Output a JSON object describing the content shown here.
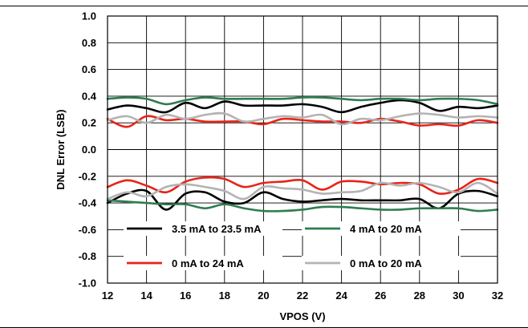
{
  "chart_data": {
    "type": "line",
    "title": "",
    "xlabel": "VPOS (V)",
    "ylabel": "DNL Error (LSB)",
    "xlim": [
      12,
      32
    ],
    "ylim": [
      -1.0,
      1.0
    ],
    "xticks": [
      12,
      14,
      16,
      18,
      20,
      22,
      24,
      26,
      28,
      30,
      32
    ],
    "yticks": [
      "1.0",
      "0.8",
      "0.6",
      "0.4",
      "0.2",
      "0.0",
      "-0.2",
      "-0.4",
      "-0.6",
      "-0.8",
      "-1.0"
    ],
    "grid": true,
    "legend_position": "bottom-inside",
    "series": [
      {
        "name": "3.5 mA to 23.5 mA",
        "color": "#000000",
        "curves": [
          {
            "x": [
              12,
              13,
              14,
              15,
              16,
              17,
              18,
              19,
              20,
              21,
              22,
              23,
              24,
              25,
              26,
              27,
              28,
              29,
              30,
              31,
              32
            ],
            "y": [
              0.3,
              0.33,
              0.31,
              0.28,
              0.35,
              0.31,
              0.36,
              0.33,
              0.33,
              0.33,
              0.34,
              0.32,
              0.28,
              0.32,
              0.35,
              0.37,
              0.35,
              0.29,
              0.32,
              0.31,
              0.33
            ]
          },
          {
            "x": [
              12,
              13,
              14,
              15,
              16,
              17,
              18,
              19,
              20,
              21,
              22,
              23,
              24,
              25,
              26,
              27,
              28,
              29,
              30,
              31,
              32
            ],
            "y": [
              -0.4,
              -0.33,
              -0.31,
              -0.45,
              -0.33,
              -0.32,
              -0.39,
              -0.4,
              -0.32,
              -0.37,
              -0.39,
              -0.38,
              -0.37,
              -0.38,
              -0.38,
              -0.38,
              -0.37,
              -0.44,
              -0.33,
              -0.31,
              -0.35
            ]
          }
        ]
      },
      {
        "name": "4 mA to 20 mA",
        "color": "#2e7d4f",
        "curves": [
          {
            "x": [
              12,
              13,
              14,
              15,
              16,
              17,
              18,
              19,
              20,
              21,
              22,
              23,
              24,
              25,
              26,
              27,
              28,
              29,
              30,
              31,
              32
            ],
            "y": [
              0.38,
              0.39,
              0.38,
              0.34,
              0.37,
              0.39,
              0.38,
              0.38,
              0.38,
              0.38,
              0.39,
              0.39,
              0.38,
              0.37,
              0.38,
              0.38,
              0.37,
              0.38,
              0.38,
              0.37,
              0.34
            ]
          },
          {
            "x": [
              12,
              13,
              14,
              15,
              16,
              17,
              18,
              19,
              20,
              21,
              22,
              23,
              24,
              25,
              26,
              27,
              28,
              29,
              30,
              31,
              32
            ],
            "y": [
              -0.38,
              -0.39,
              -0.4,
              -0.41,
              -0.41,
              -0.44,
              -0.41,
              -0.44,
              -0.46,
              -0.46,
              -0.45,
              -0.43,
              -0.43,
              -0.44,
              -0.45,
              -0.45,
              -0.44,
              -0.44,
              -0.44,
              -0.46,
              -0.45
            ]
          }
        ]
      },
      {
        "name": "0 mA to 24 mA",
        "color": "#e8231a",
        "curves": [
          {
            "x": [
              12,
              13,
              14,
              15,
              16,
              17,
              18,
              19,
              20,
              21,
              22,
              23,
              24,
              25,
              26,
              27,
              28,
              29,
              30,
              31,
              32
            ],
            "y": [
              0.23,
              0.17,
              0.25,
              0.22,
              0.23,
              0.21,
              0.21,
              0.21,
              0.19,
              0.23,
              0.22,
              0.21,
              0.21,
              0.2,
              0.23,
              0.21,
              0.18,
              0.19,
              0.18,
              0.22,
              0.2
            ]
          },
          {
            "x": [
              12,
              13,
              14,
              15,
              16,
              17,
              18,
              19,
              20,
              21,
              22,
              23,
              24,
              25,
              26,
              27,
              28,
              29,
              30,
              31,
              32
            ],
            "y": [
              -0.28,
              -0.23,
              -0.27,
              -0.32,
              -0.24,
              -0.21,
              -0.22,
              -0.28,
              -0.25,
              -0.24,
              -0.23,
              -0.3,
              -0.24,
              -0.24,
              -0.26,
              -0.25,
              -0.26,
              -0.33,
              -0.3,
              -0.22,
              -0.25
            ]
          }
        ]
      },
      {
        "name": "0 mA to 20 mA",
        "color": "#b3b3b3",
        "curves": [
          {
            "x": [
              12,
              13,
              14,
              15,
              16,
              17,
              18,
              19,
              20,
              21,
              22,
              23,
              24,
              25,
              26,
              27,
              28,
              29,
              30,
              31,
              32
            ],
            "y": [
              0.22,
              0.25,
              0.2,
              0.26,
              0.23,
              0.26,
              0.27,
              0.21,
              0.23,
              0.25,
              0.24,
              0.26,
              0.19,
              0.23,
              0.22,
              0.25,
              0.27,
              0.26,
              0.24,
              0.25,
              0.24
            ]
          },
          {
            "x": [
              12,
              13,
              14,
              15,
              16,
              17,
              18,
              19,
              20,
              21,
              22,
              23,
              24,
              25,
              26,
              27,
              28,
              29,
              30,
              31,
              32
            ],
            "y": [
              -0.37,
              -0.32,
              -0.35,
              -0.28,
              -0.26,
              -0.28,
              -0.31,
              -0.37,
              -0.28,
              -0.29,
              -0.3,
              -0.33,
              -0.32,
              -0.31,
              -0.25,
              -0.27,
              -0.25,
              -0.28,
              -0.32,
              -0.25,
              -0.33
            ]
          }
        ]
      }
    ],
    "legend": [
      {
        "label": "3.5 mA to 23.5 mA",
        "color": "#000000"
      },
      {
        "label": "4 mA to 20 mA",
        "color": "#2e7d4f"
      },
      {
        "label": "0 mA to 24 mA",
        "color": "#e8231a"
      },
      {
        "label": "0 mA to 20 mA",
        "color": "#b3b3b3"
      }
    ]
  }
}
